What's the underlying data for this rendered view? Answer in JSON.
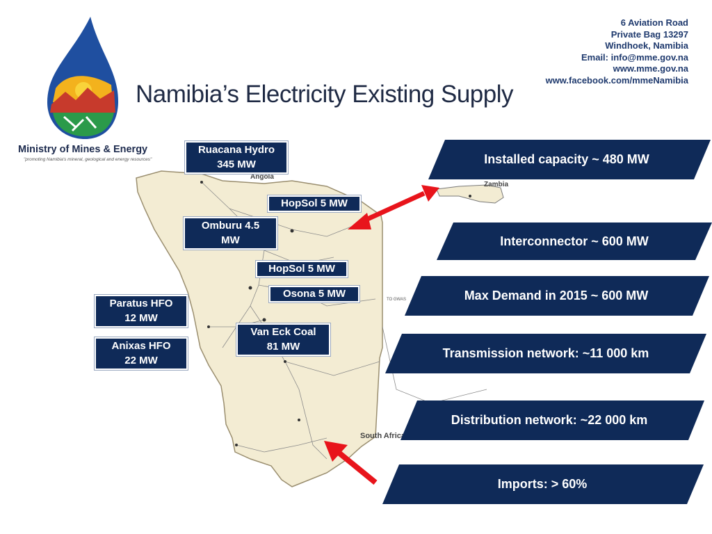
{
  "header": {
    "title": "Namibia’s Electricity Existing Supply",
    "ministry_name": "Ministry of Mines & Energy",
    "tagline": "\"promoting Namibia's mineral, geological and energy resources\"",
    "contact_lines": [
      "6 Aviation Road",
      "Private Bag 13297",
      "Windhoek, Namibia",
      "Email: info@mme.gov.na",
      "www.mme.gov.na",
      "www.facebook.com/mmeNamibia"
    ]
  },
  "plants": [
    {
      "id": "ruacana",
      "line1": "Ruacana Hydro",
      "line2": "345 MW"
    },
    {
      "id": "hopsol-north",
      "line1": "HopSol 5 MW",
      "line2": ""
    },
    {
      "id": "omburu",
      "line1": "Omburu 4.5",
      "line2": "MW"
    },
    {
      "id": "hopsol-central",
      "line1": "HopSol 5 MW",
      "line2": ""
    },
    {
      "id": "osona",
      "line1": "Osona 5 MW",
      "line2": ""
    },
    {
      "id": "paratus",
      "line1": "Paratus HFO",
      "line2": "12 MW"
    },
    {
      "id": "van-eck",
      "line1": "Van Eck Coal",
      "line2": "81 MW"
    },
    {
      "id": "anixas",
      "line1": "Anixas HFO",
      "line2": "22 MW"
    }
  ],
  "facts": [
    {
      "id": "installed",
      "text": "Installed capacity ~ 480 MW"
    },
    {
      "id": "interconnector",
      "text": "Interconnector ~ 600 MW"
    },
    {
      "id": "max-demand",
      "text": "Max Demand in 2015 ~ 600 MW"
    },
    {
      "id": "transmission",
      "text": "Transmission network: ~11 000 km"
    },
    {
      "id": "distribution",
      "text": "Distribution network: ~22 000 km"
    },
    {
      "id": "imports",
      "text": "Imports: > 60%"
    }
  ],
  "map_labels": {
    "zambia": "Zambia",
    "angola": "Angola",
    "south_africa": "South Africa",
    "botswana_border": "TO GWAS"
  },
  "colors": {
    "banner": "#0f2a58",
    "arrow": "#e8141b",
    "map_fill": "#f3ecd3"
  }
}
